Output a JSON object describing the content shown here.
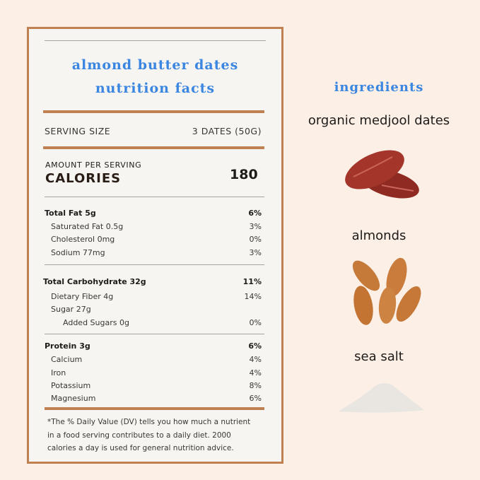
{
  "label": {
    "title_line1": "almond butter dates",
    "title_line2": "nutrition facts",
    "serving_size_label": "SERVING SIZE",
    "serving_size_value": "3 DATES (50G)",
    "amount_per_serving": "AMOUNT PER SERVING",
    "calories_label": "CALORIES",
    "calories_value": "180",
    "rows": [
      {
        "name": "Total Fat 5g",
        "dv": "6%",
        "bold": true
      },
      {
        "name": "Saturated Fat 0.5g",
        "dv": "3%"
      },
      {
        "name": "Cholesterol 0mg",
        "dv": "0%"
      },
      {
        "name": "Sodium 77mg",
        "dv": "3%"
      },
      {
        "name": "Total Carbohydrate 32g",
        "dv": "11%",
        "bold": true
      },
      {
        "name": "Dietary Fiber 4g",
        "dv": "14%"
      },
      {
        "name": "Sugar 27g",
        "dv": ""
      },
      {
        "name": "Added Sugars 0g",
        "dv": "0%"
      },
      {
        "name": "Protein 3g",
        "dv": "6%",
        "bold": true
      },
      {
        "name": "Calcium",
        "dv": "4%"
      },
      {
        "name": "Iron",
        "dv": "4%"
      },
      {
        "name": "Potassium",
        "dv": "8%"
      },
      {
        "name": "Magnesium",
        "dv": "6%"
      }
    ],
    "footnote_line1": "*The % Daily Value (DV) tells you how much a nutrient",
    "footnote_line2": "in a food serving contributes to a daily diet. 2000",
    "footnote_line3": "calories a day is used for general nutrition advice."
  },
  "ingredients": {
    "heading": "ingredients",
    "items": [
      "organic medjool dates",
      "almonds",
      "sea salt"
    ]
  },
  "colors": {
    "accent_blue": "#3b86e0",
    "border_brown": "#c0804f",
    "background": "#fbefe6"
  }
}
